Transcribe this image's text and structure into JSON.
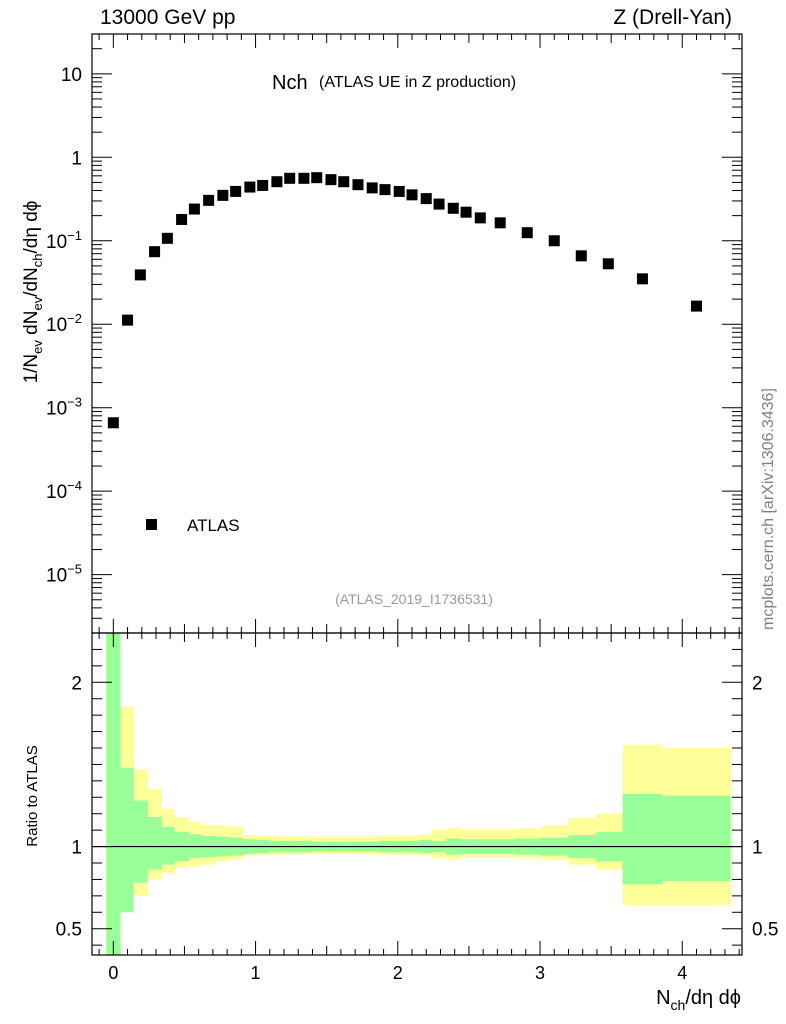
{
  "header": {
    "left": "13000 GeV pp",
    "right": "Z (Drell-Yan)"
  },
  "side_label": "mcplots.cern.ch [arXiv:1306.3436]",
  "chart_data": [
    {
      "type": "scatter",
      "panel": "main",
      "title_main": "Nch",
      "title_sub": "(ATLAS UE in Z production)",
      "watermark": "(ATLAS_2019_I1736531)",
      "yscale": "log",
      "ylim": [
        2e-06,
        30
      ],
      "xlim": [
        -0.15,
        4.42
      ],
      "ylabel": "1/Nev dNev/dNch/dη dϕ",
      "y_ticks": [
        "10^-5",
        "10^-4",
        "10^-3",
        "10^-2",
        "10^-1",
        "1",
        "10"
      ],
      "legend": {
        "position": "bottom-left",
        "entries": [
          "ATLAS"
        ]
      },
      "series": [
        {
          "name": "ATLAS",
          "x": [
            0.0,
            0.1,
            0.19,
            0.29,
            0.38,
            0.48,
            0.57,
            0.67,
            0.77,
            0.86,
            0.96,
            1.05,
            1.15,
            1.24,
            1.34,
            1.43,
            1.53,
            1.62,
            1.72,
            1.82,
            1.91,
            2.01,
            2.1,
            2.2,
            2.29,
            2.39,
            2.48,
            2.58,
            2.72,
            2.91,
            3.1,
            3.29,
            3.48,
            3.72,
            4.1
          ],
          "values": [
            0.00066,
            0.0112,
            0.039,
            0.074,
            0.107,
            0.18,
            0.24,
            0.305,
            0.35,
            0.39,
            0.44,
            0.46,
            0.51,
            0.56,
            0.56,
            0.57,
            0.54,
            0.51,
            0.47,
            0.43,
            0.41,
            0.39,
            0.355,
            0.32,
            0.275,
            0.245,
            0.22,
            0.188,
            0.164,
            0.125,
            0.1,
            0.066,
            0.053,
            0.035,
            0.0165
          ]
        }
      ]
    },
    {
      "type": "area",
      "panel": "ratio",
      "ylabel": "Ratio to ATLAS",
      "xlabel": "Nch/dη dϕ",
      "ylim": [
        0.34,
        2.3
      ],
      "xlim": [
        -0.15,
        4.42
      ],
      "x_ticks": [
        "0",
        "1",
        "2",
        "3",
        "4"
      ],
      "y_ticks": [
        "0.5",
        "1",
        "2"
      ],
      "reference_line": 1,
      "bins": [
        -0.05,
        0.05,
        0.14,
        0.24,
        0.34,
        0.43,
        0.53,
        0.62,
        0.72,
        0.81,
        0.91,
        1.0,
        1.1,
        1.2,
        1.29,
        1.39,
        1.48,
        1.58,
        1.67,
        1.77,
        1.86,
        1.96,
        2.05,
        2.15,
        2.24,
        2.34,
        2.43,
        2.53,
        2.63,
        2.82,
        3.01,
        3.2,
        3.39,
        3.58,
        3.86,
        4.34
      ],
      "band_inner": {
        "lo": [
          0.3,
          0.6,
          0.78,
          0.86,
          0.89,
          0.91,
          0.93,
          0.935,
          0.94,
          0.945,
          0.955,
          0.96,
          0.965,
          0.965,
          0.965,
          0.97,
          0.97,
          0.97,
          0.97,
          0.97,
          0.965,
          0.965,
          0.965,
          0.96,
          0.965,
          0.95,
          0.955,
          0.955,
          0.955,
          0.95,
          0.945,
          0.93,
          0.91,
          0.77,
          0.79
        ],
        "hi": [
          2.4,
          1.48,
          1.28,
          1.18,
          1.12,
          1.09,
          1.075,
          1.065,
          1.06,
          1.055,
          1.045,
          1.04,
          1.035,
          1.035,
          1.035,
          1.03,
          1.03,
          1.03,
          1.03,
          1.03,
          1.035,
          1.035,
          1.035,
          1.04,
          1.035,
          1.05,
          1.045,
          1.045,
          1.045,
          1.05,
          1.055,
          1.07,
          1.09,
          1.32,
          1.31
        ]
      },
      "band_outer": {
        "lo": [
          0.3,
          0.6,
          0.7,
          0.8,
          0.84,
          0.87,
          0.88,
          0.89,
          0.91,
          0.92,
          0.945,
          0.95,
          0.95,
          0.955,
          0.955,
          0.955,
          0.955,
          0.955,
          0.955,
          0.955,
          0.95,
          0.95,
          0.95,
          0.945,
          0.93,
          0.92,
          0.935,
          0.935,
          0.935,
          0.93,
          0.92,
          0.89,
          0.86,
          0.645,
          0.645
        ],
        "hi": [
          2.4,
          1.85,
          1.47,
          1.35,
          1.23,
          1.18,
          1.15,
          1.13,
          1.13,
          1.12,
          1.07,
          1.065,
          1.065,
          1.06,
          1.06,
          1.06,
          1.06,
          1.06,
          1.06,
          1.06,
          1.065,
          1.065,
          1.065,
          1.075,
          1.105,
          1.115,
          1.105,
          1.105,
          1.105,
          1.11,
          1.13,
          1.175,
          1.2,
          1.62,
          1.6
        ]
      },
      "colors": {
        "inner": "#99ff99",
        "outer": "#ffff99"
      }
    }
  ]
}
